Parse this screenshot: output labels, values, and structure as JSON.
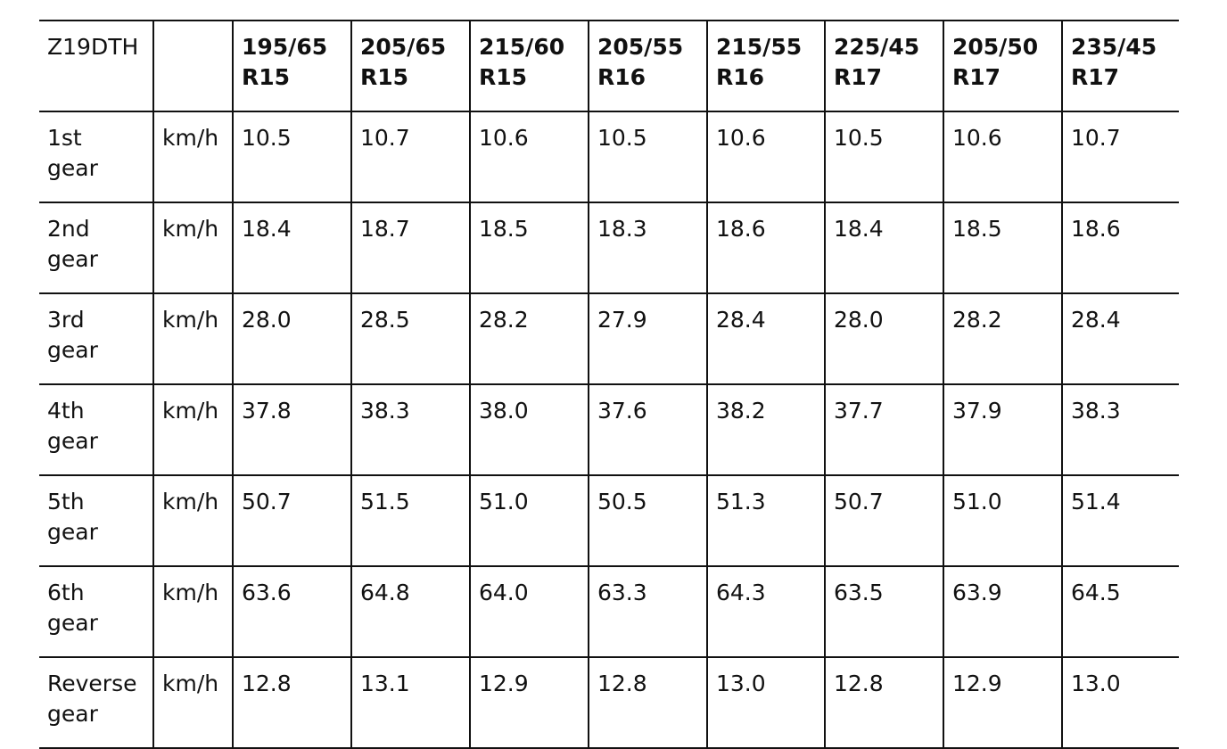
{
  "table": {
    "corner": "Z19DTH",
    "tyres": [
      "195/65 R15",
      "205/65 R15",
      "215/60 R15",
      "205/55 R16",
      "215/55 R16",
      "225/45 R17",
      "205/50 R17",
      "235/45 R17"
    ],
    "rows": [
      {
        "label": "1st gear",
        "unit": "km/h",
        "values": [
          "10.5",
          "10.7",
          "10.6",
          "10.5",
          "10.6",
          "10.5",
          "10.6",
          "10.7"
        ]
      },
      {
        "label": "2nd gear",
        "unit": "km/h",
        "values": [
          "18.4",
          "18.7",
          "18.5",
          "18.3",
          "18.6",
          "18.4",
          "18.5",
          "18.6"
        ]
      },
      {
        "label": "3rd gear",
        "unit": "km/h",
        "values": [
          "28.0",
          "28.5",
          "28.2",
          "27.9",
          "28.4",
          "28.0",
          "28.2",
          "28.4"
        ]
      },
      {
        "label": "4th gear",
        "unit": "km/h",
        "values": [
          "37.8",
          "38.3",
          "38.0",
          "37.6",
          "38.2",
          "37.7",
          "37.9",
          "38.3"
        ]
      },
      {
        "label": "5th gear",
        "unit": "km/h",
        "values": [
          "50.7",
          "51.5",
          "51.0",
          "50.5",
          "51.3",
          "50.7",
          "51.0",
          "51.4"
        ]
      },
      {
        "label": "6th gear",
        "unit": "km/h",
        "values": [
          "63.6",
          "64.8",
          "64.0",
          "63.3",
          "64.3",
          "63.5",
          "63.9",
          "64.5"
        ]
      },
      {
        "label": "Reverse gear",
        "unit": "km/h",
        "values": [
          "12.8",
          "13.1",
          "12.9",
          "12.8",
          "13.0",
          "12.8",
          "12.9",
          "13.0"
        ]
      }
    ]
  }
}
